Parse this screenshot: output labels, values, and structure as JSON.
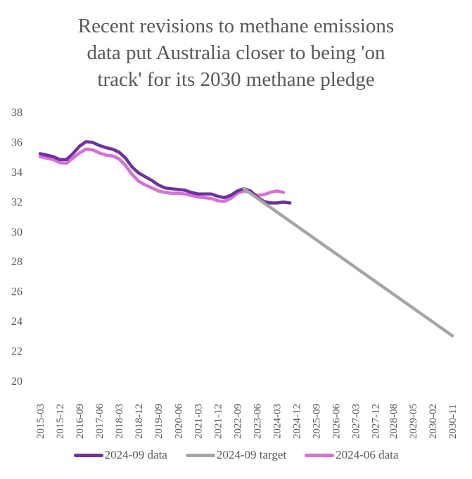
{
  "chart_data": {
    "type": "line",
    "title_lines": [
      "Recent revisions to methane emissions",
      "data put Australia closer to being 'on",
      "track' for its 2030 methane pledge"
    ],
    "xlabel": "",
    "ylabel": "",
    "ylim": [
      20,
      38
    ],
    "yticks": [
      20,
      22,
      24,
      26,
      28,
      30,
      32,
      34,
      36,
      38
    ],
    "grid": false,
    "legend_position": "bottom",
    "x_tick_labels": [
      "2015-03",
      "2015-12",
      "2016-09",
      "2017-06",
      "2018-03",
      "2018-12",
      "2019-09",
      "2020-06",
      "2021-03",
      "2021-12",
      "2022-09",
      "2023-06",
      "2024-03",
      "2024-12",
      "2025-09",
      "2026-06",
      "2027-03",
      "2027-12",
      "2028-08",
      "2029-05",
      "2030-02",
      "2030-11"
    ],
    "x_quarter_index_of_labels": [
      0,
      3,
      6,
      9,
      12,
      15,
      18,
      21,
      24,
      27,
      30,
      33,
      36,
      39,
      42,
      45,
      48,
      51,
      53.7,
      56.7,
      59.7,
      62.7
    ],
    "series": [
      {
        "name": "2024-09 data",
        "color": "#7030a0",
        "x_quarter_index": [
          0,
          1,
          2,
          3,
          4,
          5,
          6,
          7,
          8,
          9,
          10,
          11,
          12,
          13,
          14,
          15,
          16,
          17,
          18,
          19,
          20,
          21,
          22,
          23,
          24,
          25,
          26,
          27,
          28,
          29,
          30,
          31,
          32,
          33,
          34,
          35,
          36,
          37,
          38
        ],
        "values": [
          35.2,
          35.1,
          35.0,
          34.8,
          34.8,
          35.2,
          35.7,
          36.0,
          35.95,
          35.75,
          35.6,
          35.5,
          35.3,
          34.9,
          34.3,
          33.9,
          33.65,
          33.4,
          33.1,
          32.9,
          32.85,
          32.8,
          32.75,
          32.6,
          32.5,
          32.5,
          32.5,
          32.35,
          32.25,
          32.4,
          32.7,
          32.85,
          32.7,
          32.3,
          32.0,
          31.9,
          31.9,
          31.95,
          31.9
        ]
      },
      {
        "name": "2024-09 target",
        "color": "#a6a6a6",
        "x_quarter_index": [
          31,
          62.7
        ],
        "values": [
          32.85,
          23.0
        ]
      },
      {
        "name": "2024-06 data",
        "color": "#d86ed8",
        "x_quarter_index": [
          0,
          1,
          2,
          3,
          4,
          5,
          6,
          7,
          8,
          9,
          10,
          11,
          12,
          13,
          14,
          15,
          16,
          17,
          18,
          19,
          20,
          21,
          22,
          23,
          24,
          25,
          26,
          27,
          28,
          29,
          30,
          31,
          32,
          33,
          34,
          35,
          36,
          37
        ],
        "values": [
          35.0,
          34.9,
          34.8,
          34.6,
          34.55,
          34.9,
          35.25,
          35.5,
          35.45,
          35.25,
          35.1,
          35.05,
          34.85,
          34.4,
          33.8,
          33.35,
          33.1,
          32.9,
          32.7,
          32.6,
          32.55,
          32.55,
          32.5,
          32.4,
          32.3,
          32.25,
          32.2,
          32.05,
          32.0,
          32.2,
          32.55,
          32.7,
          32.6,
          32.4,
          32.45,
          32.6,
          32.7,
          32.6
        ]
      }
    ]
  }
}
